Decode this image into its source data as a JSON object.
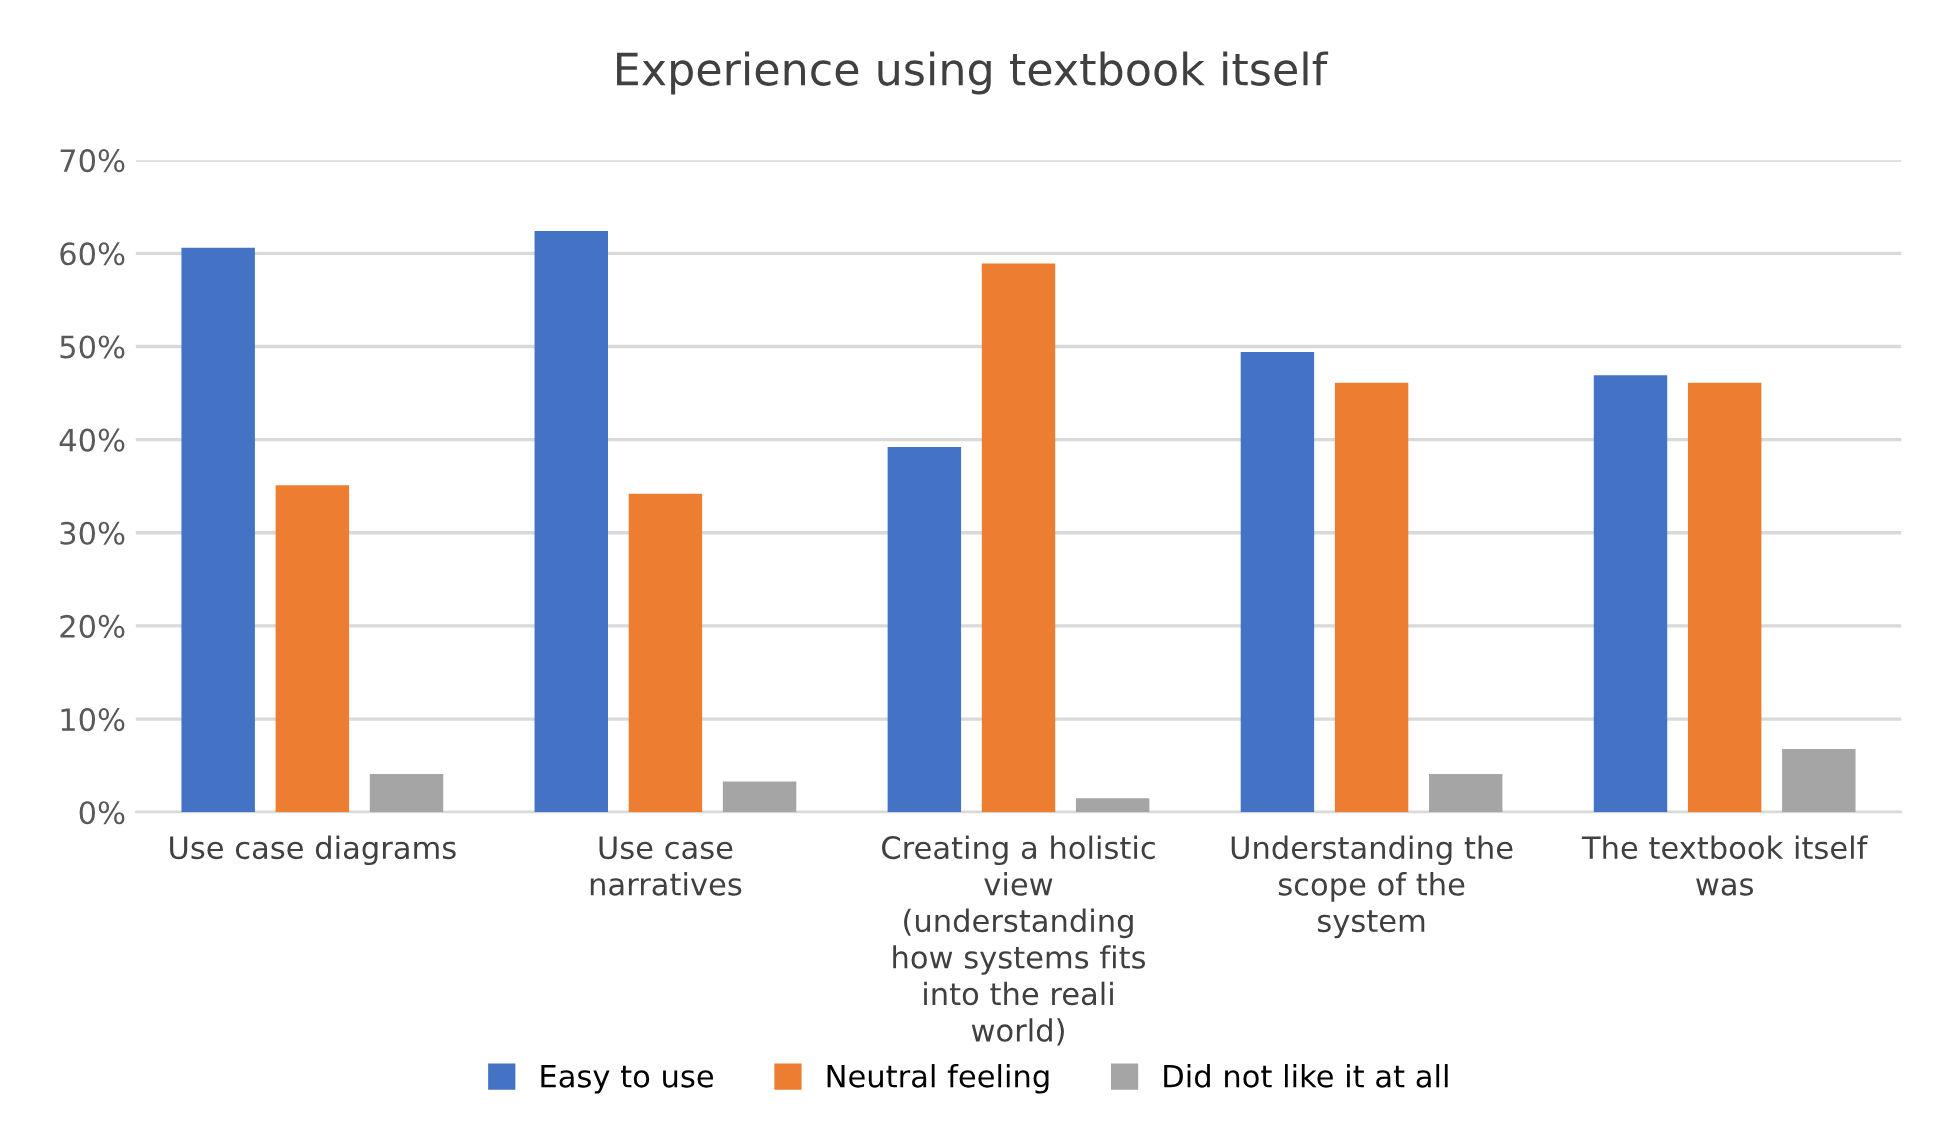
{
  "chart_data": {
    "type": "bar",
    "title": "Experience using textbook itself",
    "categories": [
      "Use case diagrams",
      "Use case narratives",
      "Creating a holistic view (understanding how systems fits into the reali world)",
      "Understanding the scope of the system",
      "The textbook itself was"
    ],
    "series": [
      {
        "name": "Easy to use",
        "color": "#4472c4",
        "values": [
          60.6,
          62.4,
          39.2,
          49.4,
          46.9
        ]
      },
      {
        "name": "Neutral feeling",
        "color": "#ed7d31",
        "values": [
          35.1,
          34.2,
          58.9,
          46.1,
          46.1
        ]
      },
      {
        "name": "Did not like it at all",
        "color": "#a5a5a5",
        "values": [
          4.1,
          3.3,
          1.5,
          4.1,
          6.8
        ]
      }
    ],
    "ylim": [
      0,
      70
    ],
    "yticks": [
      {
        "value": 0,
        "label": "0%"
      },
      {
        "value": 10,
        "label": "10%"
      },
      {
        "value": 20,
        "label": "20%"
      },
      {
        "value": 30,
        "label": "30%"
      },
      {
        "value": 40,
        "label": "40%"
      },
      {
        "value": 50,
        "label": "50%"
      },
      {
        "value": 60,
        "label": "60%"
      },
      {
        "value": 70,
        "label": "70%"
      }
    ],
    "grid": "y",
    "legend": "bottom"
  }
}
